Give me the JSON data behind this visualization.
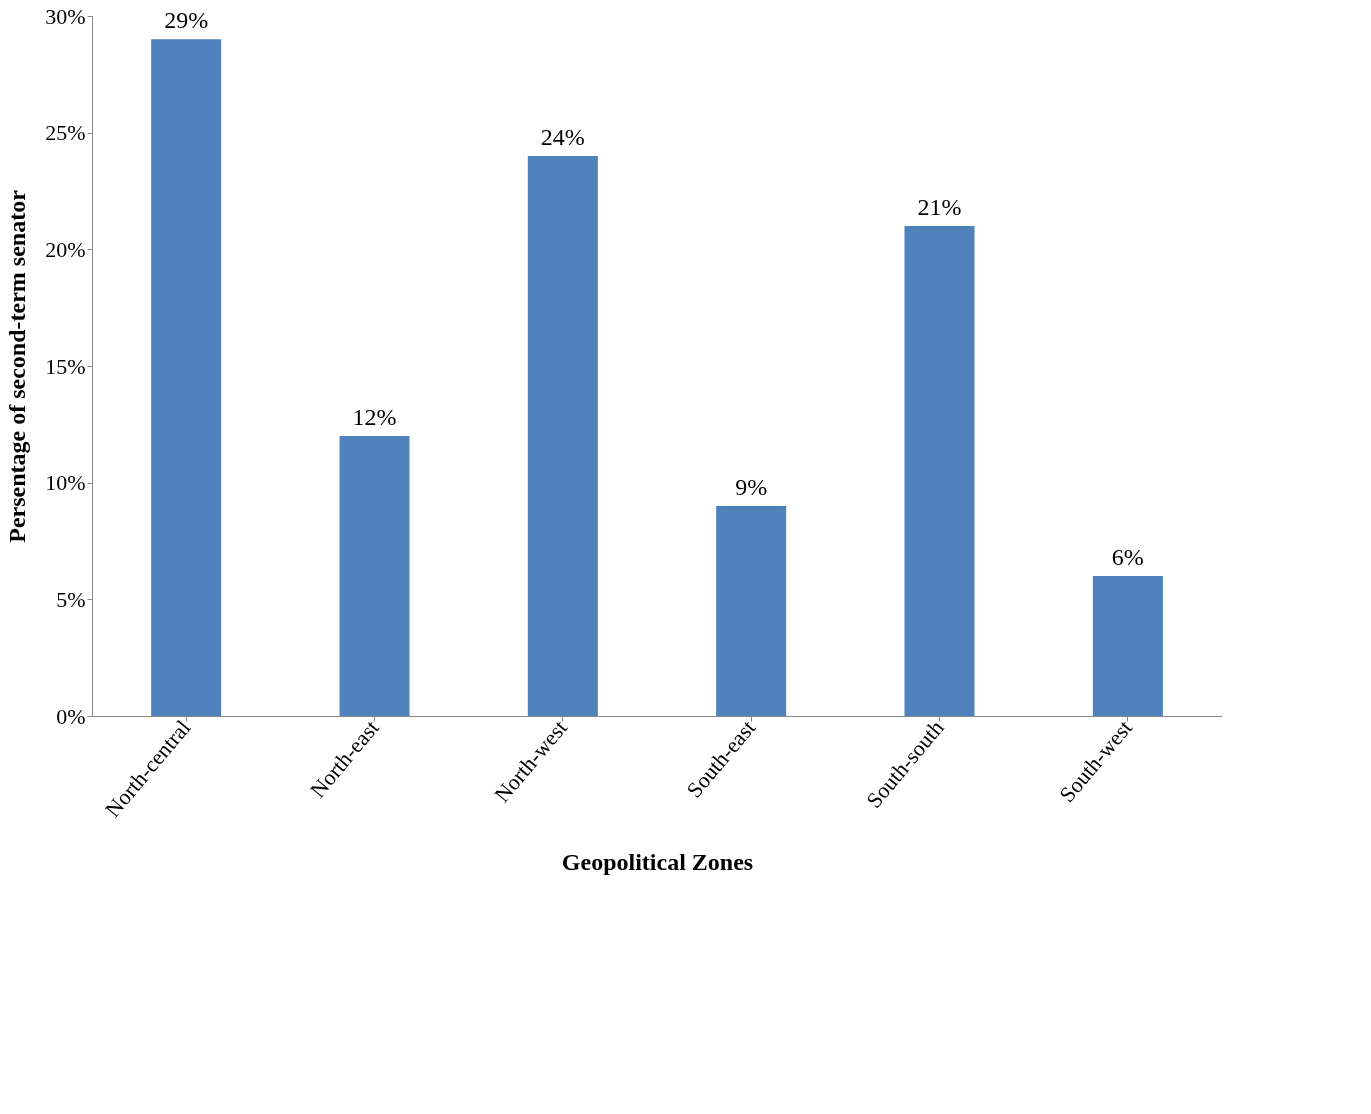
{
  "chart_data": {
    "type": "bar",
    "xlabel": "Geopolitical Zones",
    "ylabel": "Persentage of second-term senator",
    "categories": [
      "North-central",
      "North-east",
      "North-west",
      "South-east",
      "South-south",
      "South-west"
    ],
    "values": [
      29,
      12,
      24,
      9,
      21,
      6
    ],
    "value_labels": [
      "29%",
      "12%",
      "24%",
      "9%",
      "21%",
      "6%"
    ],
    "color": "#4f81bd",
    "ylim": [
      0,
      30
    ],
    "yticks": [
      {
        "value": 0,
        "label": "0%"
      },
      {
        "value": 5,
        "label": "5%"
      },
      {
        "value": 10,
        "label": "10%"
      },
      {
        "value": 15,
        "label": "15%"
      },
      {
        "value": 20,
        "label": "20%"
      },
      {
        "value": 25,
        "label": "25%"
      },
      {
        "value": 30,
        "label": "30%"
      }
    ],
    "grid": false
  }
}
